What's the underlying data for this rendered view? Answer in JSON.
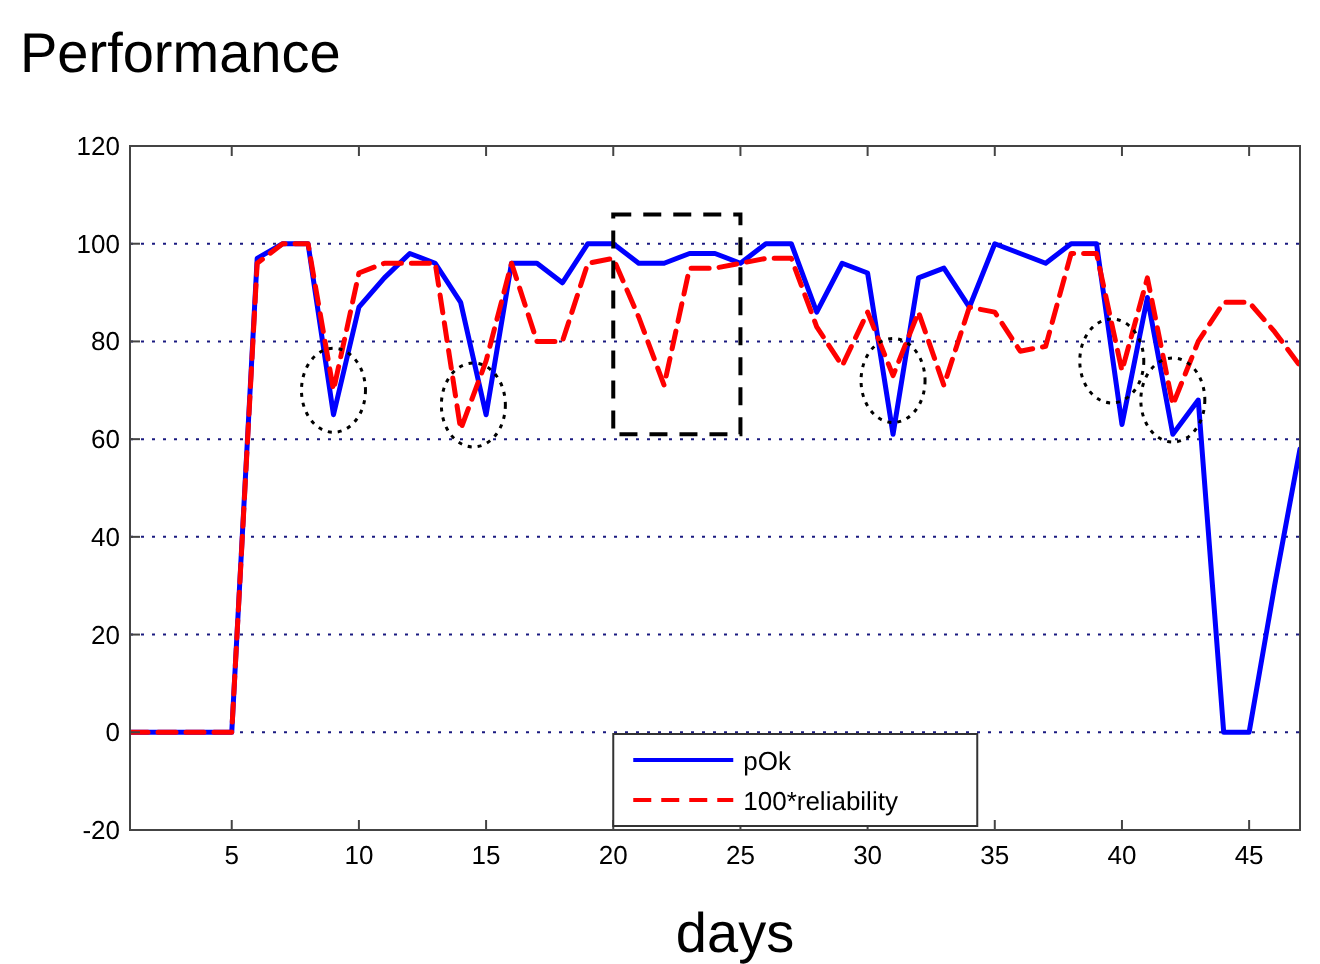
{
  "chart_data": {
    "type": "line",
    "title": "Performance",
    "xlabel": "days",
    "x": [
      1,
      2,
      3,
      4,
      5,
      6,
      7,
      8,
      9,
      10,
      11,
      12,
      13,
      14,
      15,
      16,
      17,
      18,
      19,
      20,
      21,
      22,
      23,
      24,
      25,
      26,
      27,
      28,
      29,
      30,
      31,
      32,
      33,
      34,
      35,
      36,
      37,
      38,
      39,
      40,
      41,
      42,
      43,
      44,
      45,
      46,
      47
    ],
    "series": [
      {
        "name": "pOk",
        "color": "#0000ff",
        "line_style": "solid",
        "values": [
          0,
          0,
          0,
          0,
          0,
          97,
          100,
          100,
          65,
          87,
          93,
          98,
          96,
          88,
          65,
          96,
          96,
          92,
          100,
          100,
          96,
          96,
          98,
          98,
          96,
          100,
          100,
          86,
          96,
          94,
          61,
          93,
          95,
          87,
          100,
          98,
          96,
          100,
          100,
          63,
          89,
          61,
          68,
          0,
          0,
          30,
          58
        ]
      },
      {
        "name": "100*reliability",
        "color": "#ff0000",
        "line_style": "dashed",
        "values": [
          0,
          0,
          0,
          0,
          0,
          96,
          100,
          100,
          70,
          94,
          96,
          96,
          96,
          62,
          76,
          96,
          80,
          80,
          96,
          97,
          85,
          71,
          95,
          95,
          96,
          97,
          97,
          83,
          75,
          86,
          73,
          86,
          71,
          87,
          86,
          78,
          79,
          98,
          98,
          74,
          93,
          67,
          80,
          88,
          88,
          82,
          75
        ]
      }
    ],
    "xlim": [
      1,
      47
    ],
    "xticks": [
      5,
      10,
      15,
      20,
      25,
      30,
      35,
      40,
      45
    ],
    "ylim": [
      -20,
      120
    ],
    "yticks": [
      -20,
      0,
      20,
      40,
      60,
      80,
      100,
      120
    ],
    "grid": "y",
    "legend": "bottom"
  }
}
